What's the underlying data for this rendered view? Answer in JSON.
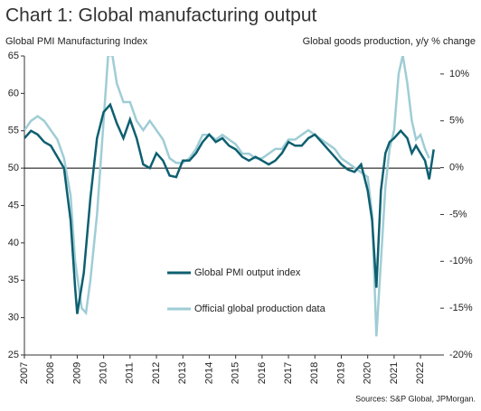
{
  "chart_data": {
    "type": "line",
    "title": "Chart 1: Global manufacturing output",
    "y_label": "Global PMI Manufacturing Index",
    "y2_label": "Global goods production, y/y % change",
    "source": "Sources: S&P Global, JPMorgan.",
    "xlim": [
      2007,
      2022.75
    ],
    "xticks": [
      2007,
      2008,
      2009,
      2010,
      2011,
      2012,
      2013,
      2014,
      2015,
      2016,
      2017,
      2018,
      2019,
      2020,
      2021,
      2022
    ],
    "ylim": [
      25,
      65
    ],
    "yticks": [
      25,
      30,
      35,
      40,
      45,
      50,
      55,
      60,
      65
    ],
    "y2lim": [
      -20,
      11.92
    ],
    "y2ticks": [
      {
        "value": 10,
        "label": "10%"
      },
      {
        "value": 5,
        "label": "5%"
      },
      {
        "value": 0,
        "label": "0%"
      },
      {
        "value": -5,
        "label": "-5%"
      },
      {
        "value": -10,
        "label": "-10%"
      },
      {
        "value": -15,
        "label": "-15%"
      },
      {
        "value": -20,
        "label": "-20%"
      }
    ],
    "hline": 50,
    "legend": "lower center",
    "series": [
      {
        "name": "Global PMI output index",
        "color": "#0e5f70",
        "axis": "y",
        "x": [
          2007,
          2007.25,
          2007.5,
          2007.75,
          2008,
          2008.25,
          2008.5,
          2008.75,
          2008.92,
          2009,
          2009.25,
          2009.5,
          2009.75,
          2010,
          2010.25,
          2010.5,
          2010.75,
          2011,
          2011.25,
          2011.5,
          2011.75,
          2012,
          2012.25,
          2012.5,
          2012.75,
          2013,
          2013.25,
          2013.5,
          2013.75,
          2014,
          2014.25,
          2014.5,
          2014.75,
          2015,
          2015.25,
          2015.5,
          2015.75,
          2016,
          2016.25,
          2016.5,
          2016.75,
          2017,
          2017.25,
          2017.5,
          2017.75,
          2018,
          2018.25,
          2018.5,
          2018.75,
          2019,
          2019.25,
          2019.5,
          2019.75,
          2020,
          2020.17,
          2020.33,
          2020.5,
          2020.67,
          2020.83,
          2021,
          2021.25,
          2021.5,
          2021.67,
          2021.83,
          2022,
          2022.17,
          2022.33,
          2022.5
        ],
        "values": [
          54,
          55,
          54.5,
          53.5,
          53,
          51.5,
          50,
          43,
          34,
          30.5,
          36,
          46,
          54,
          57.5,
          58.5,
          56,
          54,
          56.5,
          54,
          50.5,
          50,
          52,
          51,
          49,
          48.8,
          51,
          51,
          52,
          53.5,
          54.5,
          53.5,
          54,
          53,
          52.5,
          51.5,
          51,
          51.5,
          51,
          50.5,
          51,
          52,
          53.5,
          53,
          53,
          54,
          54.5,
          53.5,
          52.5,
          51.5,
          50.5,
          49.8,
          49.5,
          50.5,
          47,
          43,
          34,
          47,
          52,
          53.5,
          54,
          55,
          54,
          52,
          53,
          52,
          51,
          48.5,
          52.5
        ]
      },
      {
        "name": "Official global production data",
        "color": "#9fcdd5",
        "axis": "y2",
        "x": [
          2007,
          2007.25,
          2007.5,
          2007.75,
          2008,
          2008.25,
          2008.5,
          2008.75,
          2008.92,
          2009.17,
          2009.33,
          2009.5,
          2009.75,
          2010,
          2010.17,
          2010.33,
          2010.5,
          2010.75,
          2011,
          2011.25,
          2011.5,
          2011.75,
          2012,
          2012.25,
          2012.5,
          2012.75,
          2013,
          2013.25,
          2013.5,
          2013.75,
          2014,
          2014.25,
          2014.5,
          2014.75,
          2015,
          2015.25,
          2015.5,
          2015.75,
          2016,
          2016.25,
          2016.5,
          2016.75,
          2017,
          2017.25,
          2017.5,
          2017.75,
          2018,
          2018.25,
          2018.5,
          2018.75,
          2019,
          2019.25,
          2019.5,
          2019.75,
          2020,
          2020.17,
          2020.33,
          2020.5,
          2020.67,
          2020.83,
          2021,
          2021.17,
          2021.33,
          2021.5,
          2021.67,
          2021.83,
          2022,
          2022.17,
          2022.33
        ],
        "values": [
          4,
          5,
          5.5,
          5,
          4,
          3,
          1,
          -3,
          -10,
          -15,
          -15.5,
          -12,
          -5,
          5,
          12,
          12,
          9,
          7,
          7,
          5,
          4,
          5,
          4,
          3,
          1,
          0.5,
          0.5,
          1,
          2,
          3.5,
          3.5,
          3,
          3.5,
          3,
          2.5,
          1.5,
          1.5,
          1,
          1,
          1.5,
          2,
          2,
          3,
          3,
          3.5,
          4,
          3.5,
          3,
          2.5,
          2,
          1,
          0.5,
          0,
          -0.5,
          -1,
          -5,
          -18,
          -10,
          -2,
          2,
          4,
          10,
          12,
          9,
          5,
          3,
          3.5,
          2,
          1
        ]
      }
    ]
  }
}
